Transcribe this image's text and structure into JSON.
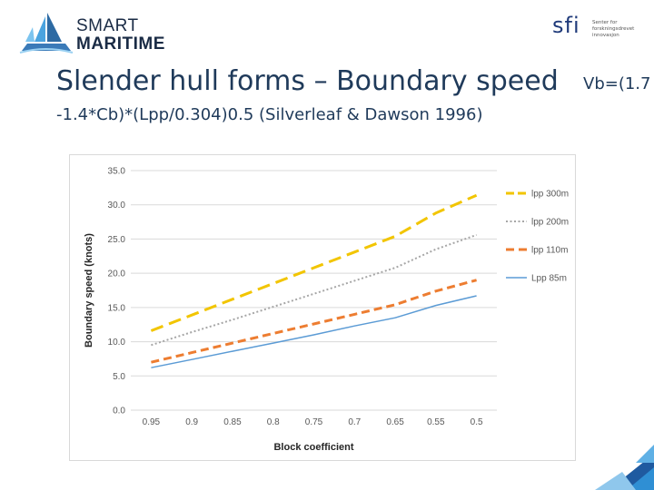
{
  "branding": {
    "logo_line1": "SMART",
    "logo_line2": "MARITIME",
    "sfi_mark": "sfi",
    "sfi_text": [
      "Senter for",
      "forskningsdrevet",
      "innovasjon"
    ]
  },
  "slide": {
    "title": "Slender hull forms – Boundary speed",
    "title_right": "Vb=(1.7",
    "subtitle": "-1.4*Cb)*(Lpp/0.304)0.5 (Silverleaf & Dawson 1996)"
  },
  "colors": {
    "text": "#1f3a5a",
    "lpp300": "#f2c500",
    "lpp200": "#a6a6a6",
    "lpp110": "#ed7d31",
    "lpp85": "#5b9bd5"
  },
  "chart_data": {
    "type": "line",
    "xlabel": "Block coefficient",
    "ylabel": "Boundary speed (knots)",
    "ylim": [
      0,
      35
    ],
    "yticks": [
      "0.0",
      "5.0",
      "10.0",
      "15.0",
      "20.0",
      "25.0",
      "30.0",
      "35.0"
    ],
    "categories": [
      "0.95",
      "0.9",
      "0.85",
      "0.8",
      "0.75",
      "0.7",
      "0.65",
      "0.55",
      "0.5"
    ],
    "grid": "horizontal",
    "legend_position": "right",
    "series": [
      {
        "name": "lpp  300m",
        "style": "long-dash",
        "color": "#f2c500",
        "values": [
          11.6,
          13.9,
          16.2,
          18.5,
          20.8,
          23.1,
          25.4,
          28.8,
          31.4
        ]
      },
      {
        "name": "lpp 200m",
        "style": "dotted",
        "color": "#a6a6a6",
        "values": [
          9.5,
          11.4,
          13.2,
          15.1,
          17.0,
          18.9,
          20.8,
          23.5,
          25.6
        ]
      },
      {
        "name": "lpp 110m",
        "style": "dashed",
        "color": "#ed7d31",
        "values": [
          7.0,
          8.4,
          9.8,
          11.2,
          12.6,
          14.0,
          15.4,
          17.4,
          19.0
        ]
      },
      {
        "name": "Lpp 85m",
        "style": "solid",
        "color": "#5b9bd5",
        "values": [
          6.2,
          7.4,
          8.6,
          9.8,
          11.0,
          12.3,
          13.5,
          15.3,
          16.7
        ]
      }
    ]
  }
}
